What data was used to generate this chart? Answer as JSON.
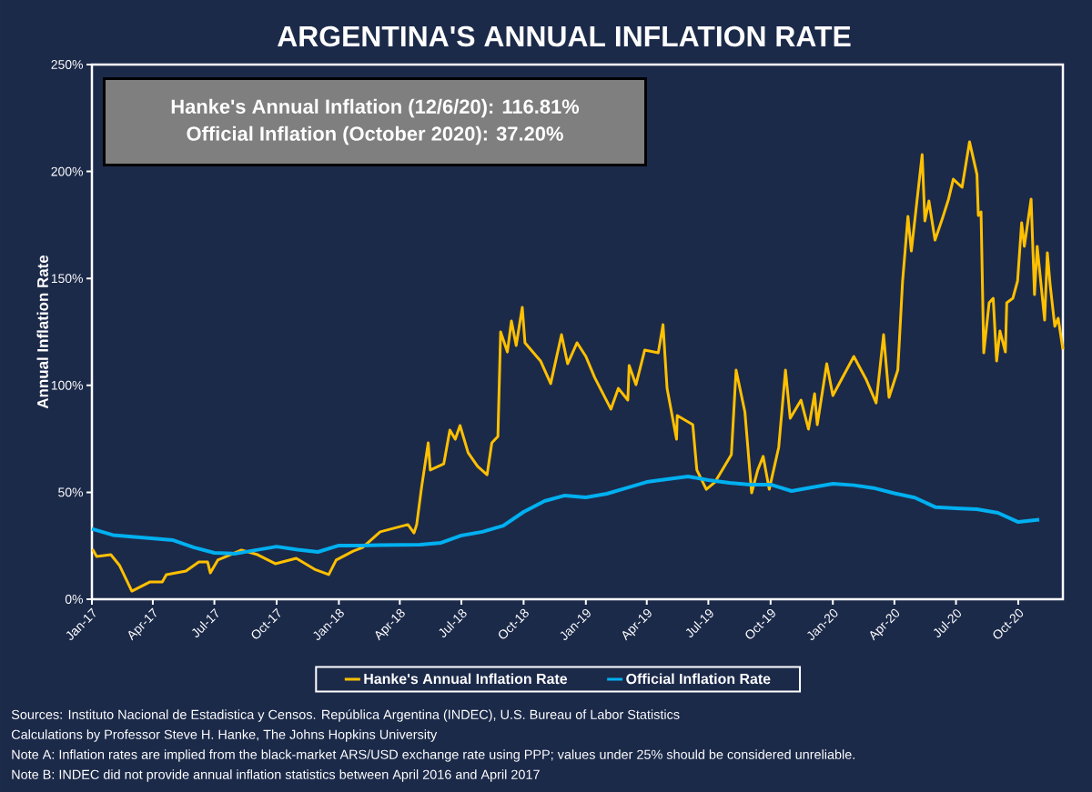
{
  "chart_data": {
    "type": "line",
    "title": "ARGENTINA'S ANNUAL INFLATION RATE",
    "ylabel": "Annual Inflation Rate",
    "annotations": [
      "Hanke's Annual Inflation (12/6/20): 116.81%",
      "Official Inflation (October 2020): 37.20%",
      "Sources: Instituto Nacional de Estadistica y Censos. República Argentina (INDEC), U.S. Bureau of Labor Statistics",
      "Calculations by Professor Steve H. Hanke, The Johns Hopkins University",
      "Note A: Inflation rates are implied from the black-market ARS/USD exchange rate using PPP; values under 25% should be considered unreliable.",
      "Note B: INDEC did not provide annual inflation statistics between April 2016 and April 2017"
    ],
    "xlim": [
      "2017-01-01",
      "2020-12-06"
    ],
    "xticks": [
      {
        "value": "2017-01",
        "label": "Jan-17"
      },
      {
        "value": "2017-04",
        "label": "Apr-17"
      },
      {
        "value": "2017-07",
        "label": "Jul-17"
      },
      {
        "value": "2017-10",
        "label": "Oct-17"
      },
      {
        "value": "2018-01",
        "label": "Jan-18"
      },
      {
        "value": "2018-04",
        "label": "Apr-18"
      },
      {
        "value": "2018-07",
        "label": "Jul-18"
      },
      {
        "value": "2018-10",
        "label": "Oct-18"
      },
      {
        "value": "2019-01",
        "label": "Jan-19"
      },
      {
        "value": "2019-04",
        "label": "Apr-19"
      },
      {
        "value": "2019-07",
        "label": "Jul-19"
      },
      {
        "value": "2019-10",
        "label": "Oct-19"
      },
      {
        "value": "2020-01",
        "label": "Jan-20"
      },
      {
        "value": "2020-04",
        "label": "Apr-20"
      },
      {
        "value": "2020-07",
        "label": "Jul-20"
      },
      {
        "value": "2020-10",
        "label": "Oct-20"
      }
    ],
    "ylim": [
      0,
      250
    ],
    "yticks": [
      {
        "value": 0,
        "label": "0%"
      },
      {
        "value": 50,
        "label": "50%"
      },
      {
        "value": 100,
        "label": "100%"
      },
      {
        "value": 150,
        "label": "150%"
      },
      {
        "value": 200,
        "label": "200%"
      },
      {
        "value": 250,
        "label": "250%"
      }
    ],
    "legend": "bottom",
    "series": [
      {
        "name": "Hanke's Annual Inflation Rate",
        "color": "#ffc000",
        "x": [
          "2017-01-02",
          "2017-01-08",
          "2017-01-29",
          "2017-02-11",
          "2017-03-01",
          "2017-03-28",
          "2017-04-15",
          "2017-04-21",
          "2017-05-20",
          "2017-06-08",
          "2017-06-21",
          "2017-06-25",
          "2017-07-06",
          "2017-08-10",
          "2017-09-03",
          "2017-09-29",
          "2017-10-30",
          "2017-11-26",
          "2017-12-17",
          "2017-12-28",
          "2018-01-22",
          "2018-02-05",
          "2018-03-03",
          "2018-04-13",
          "2018-04-22",
          "2018-04-26",
          "2018-05-03",
          "2018-05-13",
          "2018-05-16",
          "2018-06-05",
          "2018-06-14",
          "2018-06-22",
          "2018-06-29",
          "2018-07-11",
          "2018-07-25",
          "2018-08-08",
          "2018-08-15",
          "2018-08-24",
          "2018-08-28",
          "2018-09-07",
          "2018-09-13",
          "2018-09-20",
          "2018-09-29",
          "2018-10-03",
          "2018-10-26",
          "2018-11-10",
          "2018-11-26",
          "2018-12-05",
          "2018-12-19",
          "2019-01-01",
          "2019-01-14",
          "2019-02-07",
          "2019-02-18",
          "2019-03-04",
          "2019-03-06",
          "2019-03-16",
          "2019-03-29",
          "2019-04-18",
          "2019-04-25",
          "2019-05-01",
          "2019-05-15",
          "2019-05-16",
          "2019-06-08",
          "2019-06-14",
          "2019-06-28",
          "2019-07-11",
          "2019-08-04",
          "2019-08-11",
          "2019-08-24",
          "2019-09-03",
          "2019-09-12",
          "2019-09-20",
          "2019-09-29",
          "2019-10-13",
          "2019-10-23",
          "2019-10-30",
          "2019-11-15",
          "2019-11-26",
          "2019-12-05",
          "2019-12-09",
          "2019-12-23",
          "2020-01-01",
          "2020-02-01",
          "2020-02-19",
          "2020-03-05",
          "2020-03-16",
          "2020-03-24",
          "2020-04-06",
          "2020-04-13",
          "2020-04-21",
          "2020-04-26",
          "2020-05-12",
          "2020-05-16",
          "2020-05-22",
          "2020-05-31",
          "2020-06-11",
          "2020-06-20",
          "2020-06-27",
          "2020-07-10",
          "2020-07-21",
          "2020-08-01",
          "2020-08-03",
          "2020-08-07",
          "2020-08-11",
          "2020-08-19",
          "2020-08-25",
          "2020-08-30",
          "2020-09-04",
          "2020-09-12",
          "2020-09-14",
          "2020-09-23",
          "2020-09-30",
          "2020-10-06",
          "2020-10-10",
          "2020-10-20",
          "2020-10-25",
          "2020-10-29",
          "2020-11-09",
          "2020-11-13",
          "2020-11-17",
          "2020-11-24",
          "2020-11-29",
          "2020-12-06"
        ],
        "values": [
          23.4,
          20.0,
          20.8,
          15.7,
          3.8,
          8.1,
          8.1,
          11.5,
          13.2,
          17.4,
          17.4,
          12.3,
          18.3,
          23.0,
          20.8,
          16.6,
          19.1,
          14.0,
          11.5,
          18.3,
          22.5,
          24.2,
          31.5,
          34.9,
          31.0,
          34.9,
          51.9,
          73.1,
          60.4,
          63.3,
          79.1,
          74.8,
          81.2,
          68.5,
          62.1,
          58.2,
          73.1,
          76.1,
          125.0,
          115.6,
          130.1,
          118.6,
          136.5,
          119.9,
          111.4,
          100.8,
          123.7,
          110.1,
          119.9,
          113.5,
          103.7,
          88.9,
          98.6,
          93.1,
          109.3,
          100.3,
          116.5,
          115.2,
          128.4,
          98.6,
          74.8,
          85.9,
          81.6,
          60.4,
          51.4,
          54.8,
          67.6,
          107.1,
          87.6,
          49.7,
          60.4,
          66.8,
          51.4,
          71.0,
          107.1,
          84.6,
          93.1,
          79.5,
          96.1,
          81.6,
          110.1,
          95.2,
          113.5,
          102.9,
          91.8,
          123.7,
          94.4,
          107.1,
          148.4,
          179.0,
          162.8,
          207.9,
          176.9,
          186.2,
          167.9,
          178.1,
          187.1,
          196.4,
          192.6,
          213.9,
          198.6,
          179.4,
          181.1,
          115.2,
          138.6,
          140.7,
          111.4,
          125.4,
          115.6,
          138.6,
          140.7,
          148.8,
          176.0,
          165.0,
          187.1,
          142.4,
          165.0,
          130.5,
          162.0,
          147.5,
          127.6,
          131.4,
          116.8
        ]
      },
      {
        "name": "Official Inflation Rate",
        "color": "#00b0f0",
        "x": [
          "2017-01",
          "2017-02",
          "2017-05",
          "2017-06",
          "2017-07",
          "2017-08",
          "2017-09",
          "2017-10",
          "2017-11",
          "2017-12",
          "2018-01",
          "2018-02",
          "2018-03",
          "2018-04",
          "2018-05",
          "2018-06",
          "2018-07",
          "2018-08",
          "2018-09",
          "2018-10",
          "2018-11",
          "2018-12",
          "2019-01",
          "2019-02",
          "2019-03",
          "2019-04",
          "2019-05",
          "2019-06",
          "2019-07",
          "2019-08",
          "2019-09",
          "2019-10",
          "2019-11",
          "2019-12",
          "2020-01",
          "2020-02",
          "2020-03",
          "2020-04",
          "2020-05",
          "2020-06",
          "2020-07",
          "2020-08",
          "2020-09",
          "2020-10",
          "2020-11"
        ],
        "values": [
          32.9,
          30.0,
          27.6,
          24.2,
          21.7,
          21.3,
          23.0,
          24.6,
          23.2,
          22.1,
          25.1,
          25.1,
          25.3,
          25.4,
          25.5,
          26.4,
          29.8,
          31.5,
          34.4,
          40.8,
          45.9,
          48.5,
          47.6,
          49.3,
          51.9,
          54.8,
          56.1,
          57.4,
          55.7,
          54.4,
          53.6,
          53.6,
          50.6,
          52.3,
          54.0,
          53.3,
          52.0,
          49.5,
          47.5,
          43.0,
          42.5,
          42.1,
          40.4,
          36.1,
          37.2
        ]
      }
    ]
  }
}
